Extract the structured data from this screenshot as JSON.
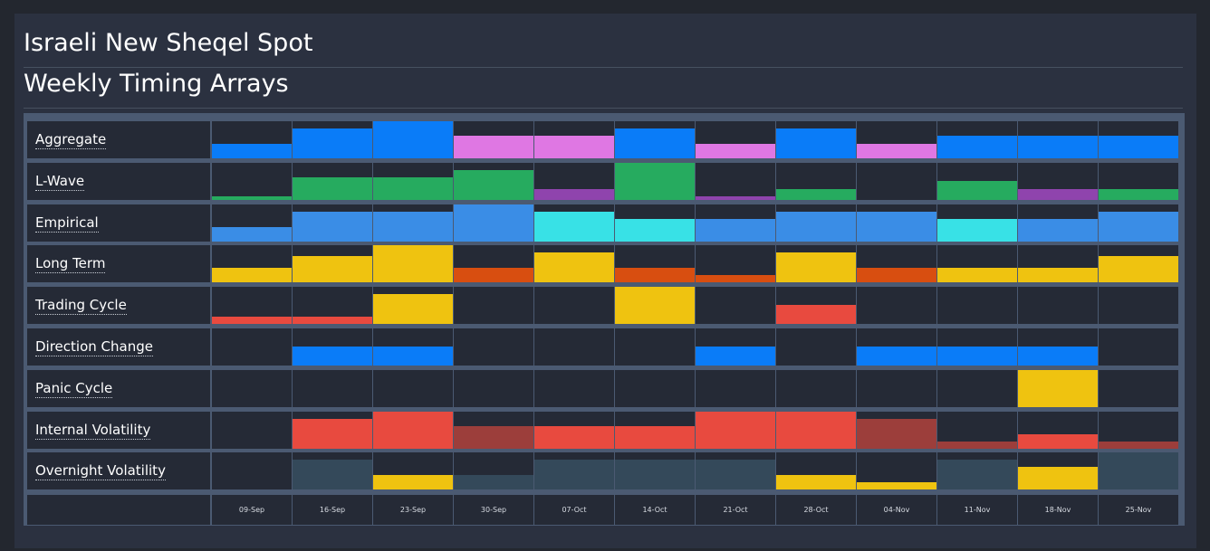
{
  "header": {
    "title": "Israeli New Sheqel Spot",
    "subtitle": "Weekly Timing Arrays"
  },
  "chart_data": {
    "type": "heatmap",
    "categories": [
      "09-Sep",
      "16-Sep",
      "23-Sep",
      "30-Sep",
      "07-Oct",
      "14-Oct",
      "21-Oct",
      "28-Oct",
      "04-Nov",
      "11-Nov",
      "18-Nov",
      "25-Nov"
    ],
    "value_range": [
      0,
      5
    ],
    "series": [
      {
        "name": "Aggregate",
        "values": [
          2,
          4,
          5,
          3,
          3,
          4,
          2,
          4,
          2,
          3,
          3,
          3
        ],
        "colors": [
          "#0a7cf8",
          "#0a7cf8",
          "#0a7cf8",
          "#df77e3",
          "#df77e3",
          "#0a7cf8",
          "#df77e3",
          "#0a7cf8",
          "#df77e3",
          "#0a7cf8",
          "#0a7cf8",
          "#0a7cf8"
        ]
      },
      {
        "name": "L-Wave",
        "values": [
          0.5,
          3,
          3,
          4,
          1.5,
          5,
          0.5,
          1.5,
          0,
          2.5,
          1.5,
          1.5
        ],
        "colors": [
          "#26ab5f",
          "#26ab5f",
          "#26ab5f",
          "#26ab5f",
          "#8f44ad",
          "#26ab5f",
          "#8f44ad",
          "#26ab5f",
          "#26ab5f",
          "#26ab5f",
          "#8f44ad",
          "#26ab5f"
        ]
      },
      {
        "name": "Empirical",
        "values": [
          2,
          4,
          4,
          5,
          4,
          3,
          3,
          4,
          4,
          3,
          3,
          4
        ],
        "colors": [
          "#3a8de6",
          "#3a8de6",
          "#3a8de6",
          "#3a8de6",
          "#38e1e6",
          "#38e1e6",
          "#3a8de6",
          "#3a8de6",
          "#3a8de6",
          "#38e1e6",
          "#3a8de6",
          "#3a8de6"
        ]
      },
      {
        "name": "Long Term",
        "values": [
          2,
          3.5,
          5,
          2,
          4,
          2,
          1,
          4,
          2,
          2,
          2,
          3.5
        ],
        "colors": [
          "#efc310",
          "#efc310",
          "#efc310",
          "#d84e10",
          "#efc310",
          "#d84e10",
          "#d84e10",
          "#efc310",
          "#d84e10",
          "#efc310",
          "#efc310",
          "#efc310"
        ]
      },
      {
        "name": "Trading Cycle",
        "values": [
          1,
          1,
          4,
          0,
          0,
          5,
          0,
          2.5,
          0,
          0,
          0,
          0
        ],
        "colors": [
          "#e84a3f",
          "#e84a3f",
          "#efc310",
          "#252a36",
          "#252a36",
          "#efc310",
          "#252a36",
          "#e84a3f",
          "#252a36",
          "#252a36",
          "#252a36",
          "#252a36"
        ]
      },
      {
        "name": "Direction Change",
        "values": [
          0,
          2.5,
          2.5,
          0,
          0,
          0,
          2.5,
          0,
          2.5,
          2.5,
          2.5,
          0
        ],
        "colors": [
          "#0a7cf8",
          "#0a7cf8",
          "#0a7cf8",
          "#0a7cf8",
          "#0a7cf8",
          "#0a7cf8",
          "#0a7cf8",
          "#0a7cf8",
          "#0a7cf8",
          "#0a7cf8",
          "#0a7cf8",
          "#0a7cf8"
        ]
      },
      {
        "name": "Panic Cycle",
        "values": [
          0,
          0,
          0,
          0,
          0,
          0,
          0,
          0,
          0,
          0,
          5,
          0
        ],
        "colors": [
          "#efc310",
          "#efc310",
          "#efc310",
          "#efc310",
          "#efc310",
          "#efc310",
          "#efc310",
          "#efc310",
          "#efc310",
          "#efc310",
          "#efc310",
          "#efc310"
        ]
      },
      {
        "name": "Internal Volatility",
        "values": [
          0,
          4,
          5,
          3,
          3,
          3,
          5,
          5,
          4,
          1,
          2,
          1
        ],
        "colors": [
          "#e84a3f",
          "#e84a3f",
          "#e84a3f",
          "#9c3e3b",
          "#e84a3f",
          "#e84a3f",
          "#e84a3f",
          "#e84a3f",
          "#9c3e3b",
          "#9c3e3b",
          "#e84a3f",
          "#9c3e3b"
        ]
      },
      {
        "name": "Overnight Volatility",
        "values": [
          0,
          4,
          2,
          2,
          4,
          4,
          4,
          2,
          1,
          4,
          3,
          5
        ],
        "colors": [
          "#34495a",
          "#34495a",
          "#efc310",
          "#34495a",
          "#34495a",
          "#34495a",
          "#34495a",
          "#efc310",
          "#efc310",
          "#34495a",
          "#efc310",
          "#34495a"
        ]
      }
    ],
    "grid": true,
    "legend": "none"
  }
}
